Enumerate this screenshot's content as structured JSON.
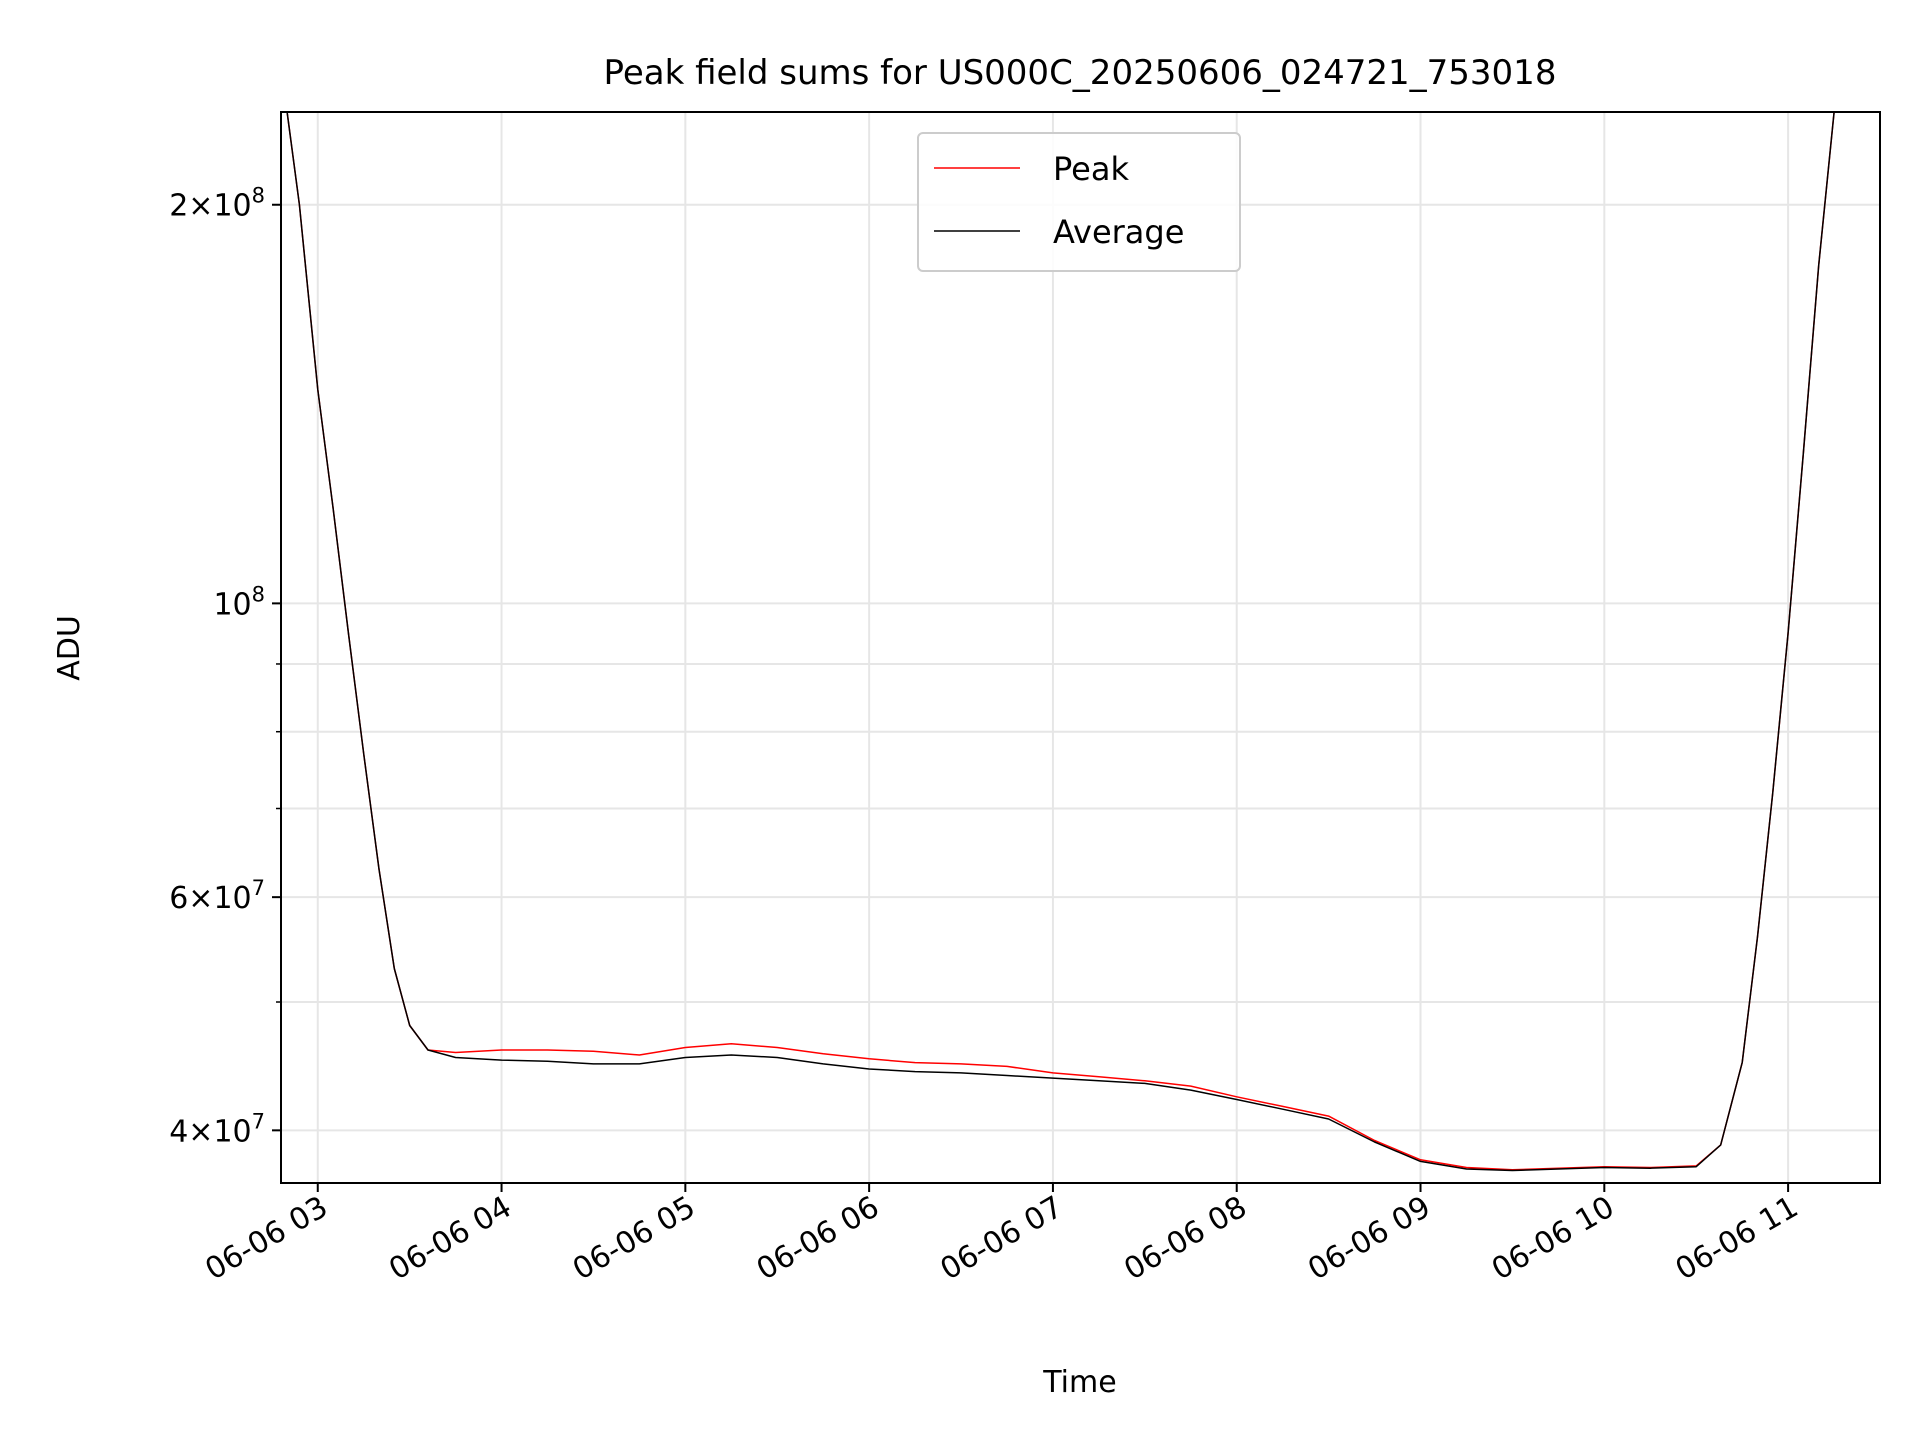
{
  "chart_data": {
    "type": "line",
    "title": "Peak field sums for US000C_20250606_024721_753018",
    "xlabel": "Time",
    "ylabel": "ADU",
    "x_axis_kind": "time",
    "y_scale": "log",
    "grid": true,
    "legend_position": "top-center",
    "xlim": [
      "2025-06-06 02:48",
      "2025-06-06 11:30"
    ],
    "ylim": [
      36500000,
      235000000
    ],
    "x_ticks": [
      {
        "t": "2025-06-06 03:00",
        "label": "06-06 03"
      },
      {
        "t": "2025-06-06 04:00",
        "label": "06-06 04"
      },
      {
        "t": "2025-06-06 05:00",
        "label": "06-06 05"
      },
      {
        "t": "2025-06-06 06:00",
        "label": "06-06 06"
      },
      {
        "t": "2025-06-06 07:00",
        "label": "06-06 07"
      },
      {
        "t": "2025-06-06 08:00",
        "label": "06-06 08"
      },
      {
        "t": "2025-06-06 09:00",
        "label": "06-06 09"
      },
      {
        "t": "2025-06-06 10:00",
        "label": "06-06 10"
      },
      {
        "t": "2025-06-06 11:00",
        "label": "06-06 11"
      }
    ],
    "y_ticks": [
      {
        "v": 40000000,
        "mant": "4",
        "exp": "7"
      },
      {
        "v": 60000000,
        "mant": "6",
        "exp": "7"
      },
      {
        "v": 100000000,
        "mant": "",
        "exp": "8"
      },
      {
        "v": 200000000,
        "mant": "2",
        "exp": "8"
      }
    ],
    "y_minor_ticks": [
      50000000,
      70000000,
      80000000,
      90000000
    ],
    "series": [
      {
        "name": "Peak",
        "color": "#ff0000",
        "line_width": 1,
        "points": [
          [
            "2025-06-06 02:50",
            235000000
          ],
          [
            "2025-06-06 02:54",
            200000000
          ],
          [
            "2025-06-06 03:00",
            145000000
          ],
          [
            "2025-06-06 03:05",
            118000000
          ],
          [
            "2025-06-06 03:10",
            95000000
          ],
          [
            "2025-06-06 03:15",
            77000000
          ],
          [
            "2025-06-06 03:20",
            63000000
          ],
          [
            "2025-06-06 03:25",
            53000000
          ],
          [
            "2025-06-06 03:30",
            48000000
          ],
          [
            "2025-06-06 03:36",
            46000000
          ],
          [
            "2025-06-06 03:45",
            45800000
          ],
          [
            "2025-06-06 04:00",
            46000000
          ],
          [
            "2025-06-06 04:15",
            46000000
          ],
          [
            "2025-06-06 04:30",
            45900000
          ],
          [
            "2025-06-06 04:45",
            45600000
          ],
          [
            "2025-06-06 05:00",
            46200000
          ],
          [
            "2025-06-06 05:15",
            46500000
          ],
          [
            "2025-06-06 05:30",
            46200000
          ],
          [
            "2025-06-06 05:45",
            45700000
          ],
          [
            "2025-06-06 06:00",
            45300000
          ],
          [
            "2025-06-06 06:15",
            45000000
          ],
          [
            "2025-06-06 06:30",
            44900000
          ],
          [
            "2025-06-06 06:45",
            44700000
          ],
          [
            "2025-06-06 07:00",
            44200000
          ],
          [
            "2025-06-06 07:15",
            43900000
          ],
          [
            "2025-06-06 07:30",
            43600000
          ],
          [
            "2025-06-06 07:45",
            43200000
          ],
          [
            "2025-06-06 08:00",
            42400000
          ],
          [
            "2025-06-06 08:15",
            41700000
          ],
          [
            "2025-06-06 08:30",
            41000000
          ],
          [
            "2025-06-06 08:45",
            39300000
          ],
          [
            "2025-06-06 09:00",
            38000000
          ],
          [
            "2025-06-06 09:15",
            37500000
          ],
          [
            "2025-06-06 09:30",
            37350000
          ],
          [
            "2025-06-06 09:45",
            37450000
          ],
          [
            "2025-06-06 10:00",
            37550000
          ],
          [
            "2025-06-06 10:15",
            37500000
          ],
          [
            "2025-06-06 10:30",
            37600000
          ],
          [
            "2025-06-06 10:38",
            39000000
          ],
          [
            "2025-06-06 10:45",
            45000000
          ],
          [
            "2025-06-06 10:50",
            56000000
          ],
          [
            "2025-06-06 10:55",
            72000000
          ],
          [
            "2025-06-06 11:00",
            95000000
          ],
          [
            "2025-06-06 11:05",
            130000000
          ],
          [
            "2025-06-06 11:10",
            180000000
          ],
          [
            "2025-06-06 11:15",
            235000000
          ]
        ]
      },
      {
        "name": "Average",
        "color": "#000000",
        "line_width": 1,
        "points": [
          [
            "2025-06-06 02:50",
            235000000
          ],
          [
            "2025-06-06 02:54",
            200000000
          ],
          [
            "2025-06-06 03:00",
            145000000
          ],
          [
            "2025-06-06 03:05",
            118000000
          ],
          [
            "2025-06-06 03:10",
            95000000
          ],
          [
            "2025-06-06 03:15",
            77000000
          ],
          [
            "2025-06-06 03:20",
            63000000
          ],
          [
            "2025-06-06 03:25",
            53000000
          ],
          [
            "2025-06-06 03:30",
            48000000
          ],
          [
            "2025-06-06 03:36",
            46000000
          ],
          [
            "2025-06-06 03:45",
            45400000
          ],
          [
            "2025-06-06 04:00",
            45200000
          ],
          [
            "2025-06-06 04:15",
            45100000
          ],
          [
            "2025-06-06 04:30",
            44900000
          ],
          [
            "2025-06-06 04:45",
            44900000
          ],
          [
            "2025-06-06 05:00",
            45400000
          ],
          [
            "2025-06-06 05:15",
            45600000
          ],
          [
            "2025-06-06 05:30",
            45400000
          ],
          [
            "2025-06-06 05:45",
            44900000
          ],
          [
            "2025-06-06 06:00",
            44500000
          ],
          [
            "2025-06-06 06:15",
            44300000
          ],
          [
            "2025-06-06 06:30",
            44200000
          ],
          [
            "2025-06-06 06:45",
            44000000
          ],
          [
            "2025-06-06 07:00",
            43800000
          ],
          [
            "2025-06-06 07:15",
            43600000
          ],
          [
            "2025-06-06 07:30",
            43400000
          ],
          [
            "2025-06-06 07:45",
            42900000
          ],
          [
            "2025-06-06 08:00",
            42200000
          ],
          [
            "2025-06-06 08:15",
            41500000
          ],
          [
            "2025-06-06 08:30",
            40800000
          ],
          [
            "2025-06-06 08:45",
            39200000
          ],
          [
            "2025-06-06 09:00",
            37900000
          ],
          [
            "2025-06-06 09:15",
            37400000
          ],
          [
            "2025-06-06 09:30",
            37300000
          ],
          [
            "2025-06-06 09:45",
            37400000
          ],
          [
            "2025-06-06 10:00",
            37500000
          ],
          [
            "2025-06-06 10:15",
            37450000
          ],
          [
            "2025-06-06 10:30",
            37550000
          ],
          [
            "2025-06-06 10:38",
            39000000
          ],
          [
            "2025-06-06 10:45",
            45000000
          ],
          [
            "2025-06-06 10:50",
            56000000
          ],
          [
            "2025-06-06 10:55",
            72000000
          ],
          [
            "2025-06-06 11:00",
            95000000
          ],
          [
            "2025-06-06 11:05",
            130000000
          ],
          [
            "2025-06-06 11:10",
            180000000
          ],
          [
            "2025-06-06 11:15",
            235000000
          ]
        ]
      }
    ]
  }
}
